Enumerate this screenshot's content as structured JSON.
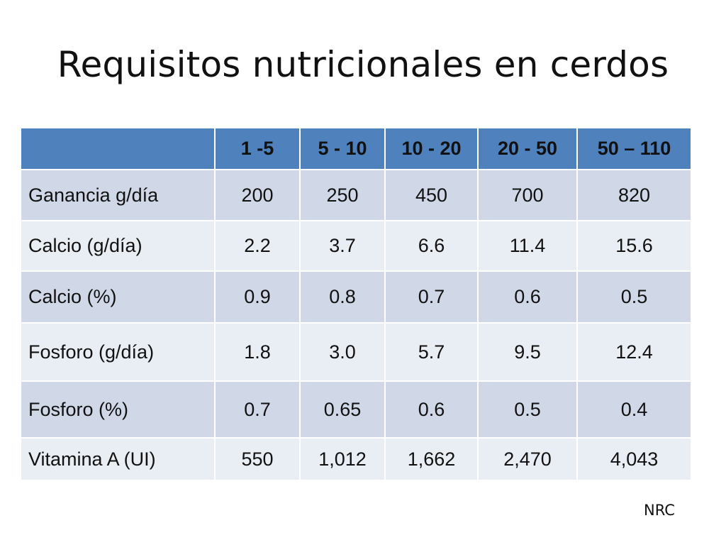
{
  "slide": {
    "title": "Requisitos nutricionales en cerdos",
    "source_note": "NRC"
  },
  "table": {
    "header": [
      "",
      "1 -5",
      "5 - 10",
      "10 - 20",
      "20 - 50",
      "50 – 110"
    ],
    "rows": [
      {
        "label": "Ganancia g/día",
        "values": [
          "200",
          "250",
          "450",
          "700",
          "820"
        ]
      },
      {
        "label": "Calcio (g/día)",
        "values": [
          "2.2",
          "3.7",
          "6.6",
          "11.4",
          "15.6"
        ]
      },
      {
        "label": "Calcio (%)",
        "values": [
          "0.9",
          "0.8",
          "0.7",
          "0.6",
          "0.5"
        ]
      },
      {
        "label": "Fosforo (g/día)",
        "values": [
          "1.8",
          "3.0",
          "5.7",
          "9.5",
          "12.4"
        ]
      },
      {
        "label": "Fosforo (%)",
        "values": [
          "0.7",
          "0.65",
          "0.6",
          "0.5",
          "0.4"
        ]
      },
      {
        "label": "Vitamina A (UI)",
        "values": [
          "550",
          "1,012",
          "1,662",
          "2,470",
          "4,043"
        ]
      }
    ],
    "colors": {
      "header_fill": "#4f81bd",
      "row_fill_dark": "#d0d8e8",
      "row_fill_light": "#e9edf4"
    }
  }
}
